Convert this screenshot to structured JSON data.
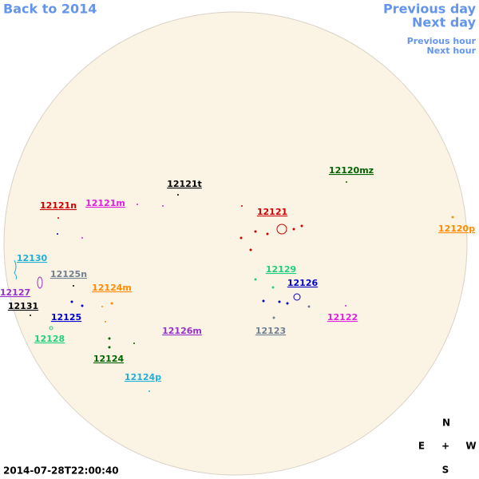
{
  "navigation": {
    "back": "Back to 2014",
    "previous_day": "Previous day",
    "next_day": "Next day",
    "previous_hour": "Previous hour",
    "next_hour": "Next hour"
  },
  "regions": [
    "12121t",
    "12120mz",
    "12121n",
    "12121m",
    "12121",
    "12120p",
    "12130",
    "12129",
    "12125n",
    "12126",
    "12124m",
    "12127",
    "12131",
    "12125",
    "12122",
    "12126m",
    "12123",
    "12128",
    "12124",
    "12124p"
  ],
  "timestamp": "2014-07-28T22:00:40",
  "compass": {
    "north": "N",
    "east": "E",
    "center": "+",
    "west": "W",
    "south": "S"
  }
}
